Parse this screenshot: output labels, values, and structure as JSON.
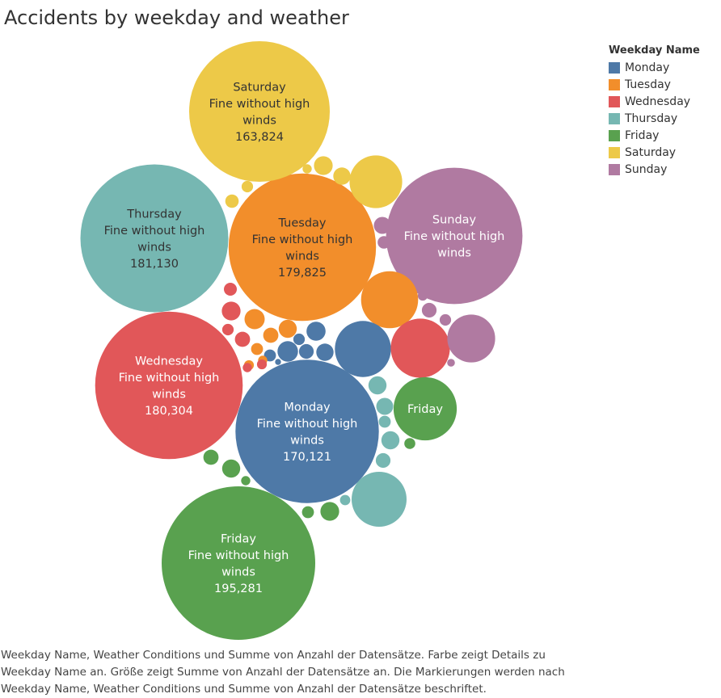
{
  "title": "Accidents by weekday and weather",
  "legend": {
    "title": "Weekday Name",
    "items": [
      {
        "label": "Monday",
        "color": "#4e79a7"
      },
      {
        "label": "Tuesday",
        "color": "#f28e2b"
      },
      {
        "label": "Wednesday",
        "color": "#e15759"
      },
      {
        "label": "Thursday",
        "color": "#76b7b2"
      },
      {
        "label": "Friday",
        "color": "#59a14f"
      },
      {
        "label": "Saturday",
        "color": "#edc948"
      },
      {
        "label": "Sunday",
        "color": "#b07aa1"
      }
    ]
  },
  "caption": [
    "Weekday Name, Weather Conditions und Summe von Anzahl der Datensätze.  Farbe zeigt Details zu",
    "Weekday Name an.  Größe zeigt Summe von Anzahl der Datensätze an.  Die Markierungen werden nach",
    "Weekday Name, Weather Conditions und Summe von Anzahl der Datensätze beschriftet."
  ],
  "chart_data": {
    "type": "packed-bubble",
    "title": "Accidents by weekday and weather",
    "size_measure": "Summe von Anzahl der Datensätze",
    "color_dimension": "Weekday Name",
    "series": [
      {
        "name": "Friday",
        "weather": "Fine without high winds",
        "value": 195281,
        "value_label": "195,281"
      },
      {
        "name": "Thursday",
        "weather": "Fine without high winds",
        "value": 181130,
        "value_label": "181,130"
      },
      {
        "name": "Wednesday",
        "weather": "Fine without high winds",
        "value": 180304,
        "value_label": "180,304"
      },
      {
        "name": "Tuesday",
        "weather": "Fine without high winds",
        "value": 179825,
        "value_label": "179,825"
      },
      {
        "name": "Monday",
        "weather": "Fine without high winds",
        "value": 170121,
        "value_label": "170,121"
      },
      {
        "name": "Saturday",
        "weather": "Fine without high winds",
        "value": 163824,
        "value_label": "163,824"
      },
      {
        "name": "Sunday",
        "weather": "Fine without high winds",
        "value": 154000,
        "value_label": ""
      },
      {
        "name": "Thursday",
        "value": 25000
      },
      {
        "name": "Saturday",
        "value": 23000
      },
      {
        "name": "Tuesday",
        "value": 27000
      },
      {
        "name": "Monday",
        "value": 26000
      },
      {
        "name": "Wednesday",
        "value": 29000
      },
      {
        "name": "Sunday",
        "value": 19000
      },
      {
        "name": "Friday",
        "value": 33000,
        "value_label": ""
      },
      {
        "name": "Monday",
        "value": 3000
      },
      {
        "name": "Monday",
        "value": 3500
      },
      {
        "name": "Monday",
        "value": 2500
      },
      {
        "name": "Monday",
        "value": 1800
      },
      {
        "name": "Monday",
        "value": 1200
      },
      {
        "name": "Monday",
        "value": 1100
      },
      {
        "name": "Monday",
        "value": 300
      },
      {
        "name": "Tuesday",
        "value": 3400
      },
      {
        "name": "Tuesday",
        "value": 1900
      },
      {
        "name": "Tuesday",
        "value": 2700
      },
      {
        "name": "Tuesday",
        "value": 1200
      },
      {
        "name": "Tuesday",
        "value": 800
      },
      {
        "name": "Tuesday",
        "value": 700
      },
      {
        "name": "Wednesday",
        "value": 2900
      },
      {
        "name": "Wednesday",
        "value": 1900
      },
      {
        "name": "Wednesday",
        "value": 1400
      },
      {
        "name": "Wednesday",
        "value": 1100
      },
      {
        "name": "Wednesday",
        "value": 800
      },
      {
        "name": "Wednesday",
        "value": 700
      },
      {
        "name": "Thursday",
        "value": 2700
      },
      {
        "name": "Thursday",
        "value": 2400
      },
      {
        "name": "Thursday",
        "value": 2700
      },
      {
        "name": "Thursday",
        "value": 1800
      },
      {
        "name": "Thursday",
        "value": 1200
      },
      {
        "name": "Thursday",
        "value": 900
      },
      {
        "name": "Friday",
        "value": 2700
      },
      {
        "name": "Friday",
        "value": 2900
      },
      {
        "name": "Friday",
        "value": 1900
      },
      {
        "name": "Friday",
        "value": 1200
      },
      {
        "name": "Friday",
        "value": 1000
      },
      {
        "name": "Friday",
        "value": 700
      },
      {
        "name": "Saturday",
        "value": 2900
      },
      {
        "name": "Saturday",
        "value": 2500
      },
      {
        "name": "Saturday",
        "value": 1500
      },
      {
        "name": "Saturday",
        "value": 1100
      },
      {
        "name": "Saturday",
        "value": 700
      },
      {
        "name": "Sunday",
        "value": 2400
      },
      {
        "name": "Sunday",
        "value": 1800
      },
      {
        "name": "Sunday",
        "value": 1300
      },
      {
        "name": "Sunday",
        "value": 1100
      },
      {
        "name": "Sunday",
        "value": 800
      },
      {
        "name": "Sunday",
        "value": 500
      }
    ]
  }
}
